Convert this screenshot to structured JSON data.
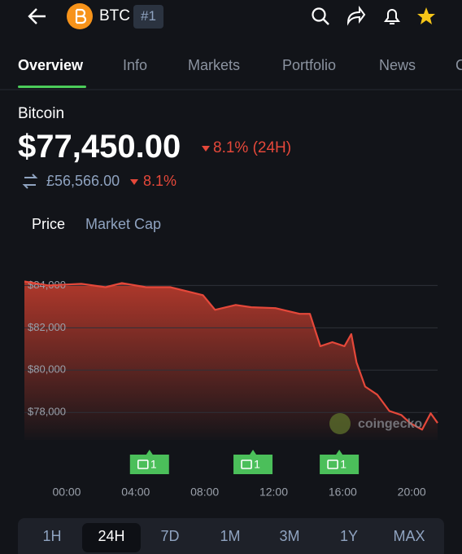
{
  "header": {
    "symbol": "BTC",
    "rank": "#1"
  },
  "tabs": [
    "Overview",
    "Info",
    "Markets",
    "Portfolio",
    "News",
    "C"
  ],
  "coin": {
    "name": "Bitcoin",
    "price": "$77,450.00",
    "change": "8.1% (24H)",
    "price_gbp": "£56,566.00",
    "change_gbp": "8.1%"
  },
  "toggle": [
    "Price",
    "Market Cap"
  ],
  "chart_data": {
    "type": "line",
    "color": "#e5483a",
    "grid": true,
    "x": [
      -2.45,
      -1.04,
      0.85,
      2.26,
      3.2,
      4.6,
      6.0,
      6.96,
      7.9,
      8.6,
      9.8,
      10.7,
      12.1,
      13.5,
      14.1,
      14.7,
      15.4,
      16.1,
      16.5,
      16.8,
      17.3,
      18.0,
      18.7,
      19.4,
      19.9,
      20.6,
      21.1,
      21.5
    ],
    "values": [
      84190,
      84000,
      84080,
      83920,
      84110,
      83920,
      83920,
      83730,
      83540,
      82850,
      83080,
      82970,
      82930,
      82660,
      82660,
      81130,
      81320,
      81130,
      81700,
      80370,
      79220,
      78840,
      78070,
      77880,
      77500,
      77190,
      77960,
      77500
    ],
    "xlim": [
      -2.45,
      21.5
    ],
    "xticks": [
      {
        "value": 0,
        "label": "00:00"
      },
      {
        "value": 4,
        "label": "04:00"
      },
      {
        "value": 8,
        "label": "08:00"
      },
      {
        "value": 12,
        "label": "12:00"
      },
      {
        "value": 16,
        "label": "16:00"
      },
      {
        "value": 20,
        "label": "20:00"
      }
    ],
    "ylim": [
      76700,
      84400
    ],
    "yticks": [
      {
        "value": 78000,
        "label": "$78,000"
      },
      {
        "value": 80000,
        "label": "$80,000"
      },
      {
        "value": 82000,
        "label": "$82,000"
      },
      {
        "value": 84000,
        "label": "$84,000"
      }
    ],
    "annotations": [
      {
        "x": 4.8,
        "label": "1"
      },
      {
        "x": 10.8,
        "label": "1"
      },
      {
        "x": 15.8,
        "label": "1"
      }
    ],
    "watermark": "coingecko"
  },
  "ranges": [
    "1H",
    "24H",
    "7D",
    "1M",
    "3M",
    "1Y",
    "MAX"
  ]
}
